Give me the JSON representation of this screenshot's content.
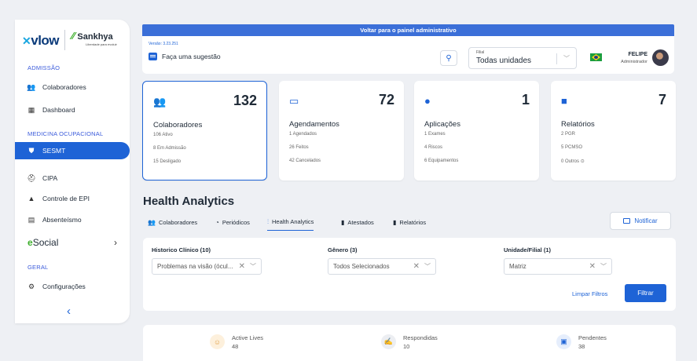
{
  "brand": {
    "vlow": "vlow",
    "sankhya": "Sankhya",
    "sankhya_tag": "Liberdade para evoluir"
  },
  "sidebar": {
    "sections": [
      "ADMISSÃO",
      "MEDICINA OCUPACIONAL",
      "GERAL"
    ],
    "items": [
      {
        "label": "Colaboradores",
        "icon": "people-icon"
      },
      {
        "label": "Dashboard",
        "icon": "dashboard-icon"
      },
      {
        "label": "SESMT",
        "icon": "shield-icon",
        "active": true
      },
      {
        "label": "CIPA",
        "icon": "hardhat-icon"
      },
      {
        "label": "Controle de EPI",
        "icon": "epi-icon"
      },
      {
        "label": "Absenteísmo",
        "icon": "calendar-x-icon"
      },
      {
        "label": "eSocial",
        "icon": "esocial-logo"
      },
      {
        "label": "Configurações",
        "icon": "gear-icon"
      }
    ],
    "esocial_prefix": "e",
    "esocial_suffix": "Social",
    "expand_glyph": "›",
    "collapse_glyph": "‹"
  },
  "banner": {
    "text": "Voltar para o painel administrativo"
  },
  "topbar": {
    "version": "Versão: 3.23.251",
    "suggest": "Faça uma sugestão",
    "filial_label": "Filial",
    "filial_value": "Todas unidades",
    "user_name": "FELIPE",
    "user_role": "Administrador"
  },
  "cards": [
    {
      "title": "Colaboradores",
      "count": "132",
      "lines": [
        "106 Ativo",
        "8 Em Admissão",
        "15 Desligado"
      ],
      "icon": "people-icon"
    },
    {
      "title": "Agendamentos",
      "count": "72",
      "lines": [
        "1 Agendados",
        "26 Feitos",
        "42 Cancelados"
      ],
      "icon": "calendar-icon"
    },
    {
      "title": "Aplicações",
      "count": "1",
      "lines": [
        "1 Exames",
        "4 Riscos",
        "6 Equipamentos"
      ],
      "icon": "alert-icon"
    },
    {
      "title": "Relatórios",
      "count": "7",
      "lines": [
        "2 PGR",
        "5 PCMSO",
        "0 Outros"
      ],
      "icon": "folder-icon"
    }
  ],
  "health": {
    "title": "Health Analytics",
    "tabs": [
      "Colaboradores",
      "Periódicos",
      "Health Analytics",
      "Atestados",
      "Relatórios"
    ],
    "active_tab": "Health Analytics",
    "notify": "Notificar"
  },
  "filters": {
    "historico_label": "Historico Clínico (10)",
    "historico_value": "Problemas na visão (ócul...",
    "genero_label": "Gênero (3)",
    "genero_value": "Todos Selecionados",
    "unidade_label": "Unidade/Filial (1)",
    "unidade_value": "Matriz",
    "clear": "Limpar Filtros",
    "apply": "Filtrar"
  },
  "bottom_stats": [
    {
      "label": "Active Lives",
      "value": "48",
      "icon": "lives-icon"
    },
    {
      "label": "Respondidas",
      "value": "10",
      "icon": "signature-icon"
    },
    {
      "label": "Pendentes",
      "value": "38",
      "icon": "clipboard-icon"
    }
  ],
  "colors": {
    "primary": "#1e63d6",
    "banner": "#3b6fd8",
    "esocial_green": "#3dae2b"
  }
}
